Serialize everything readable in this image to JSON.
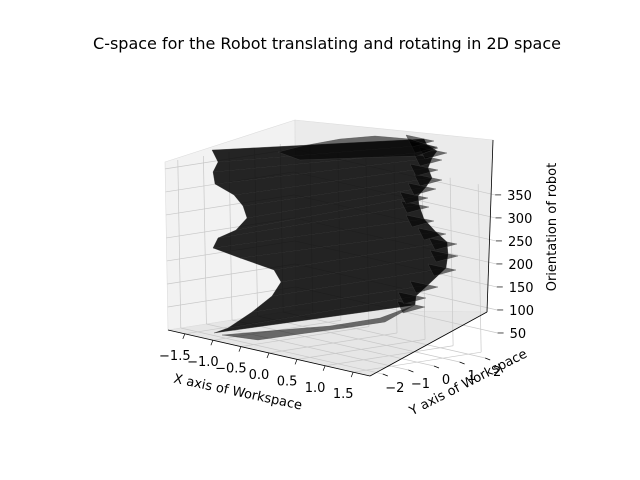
{
  "chart_data": {
    "type": "3d-surface",
    "title": "C-space for the Robot translating and rotating in 2D space",
    "xlabel": "X axis of Workspace",
    "ylabel": "Y axis of Workspace",
    "zlabel": "Orientation of robot",
    "x_ticks": [
      "−1.5",
      "−1.0",
      "−0.5",
      "0.0",
      "0.5",
      "1.0",
      "1.5"
    ],
    "y_ticks": [
      "−2",
      "−1",
      "0",
      "1",
      "2"
    ],
    "z_ticks": [
      "50",
      "100",
      "150",
      "200",
      "250",
      "300",
      "350"
    ],
    "xlim": [
      -1.8,
      1.8
    ],
    "ylim": [
      -2.5,
      2.5
    ],
    "zlim": [
      0,
      365
    ],
    "surface_color": "#000000",
    "surface_alpha": 0.55,
    "grid": true
  }
}
